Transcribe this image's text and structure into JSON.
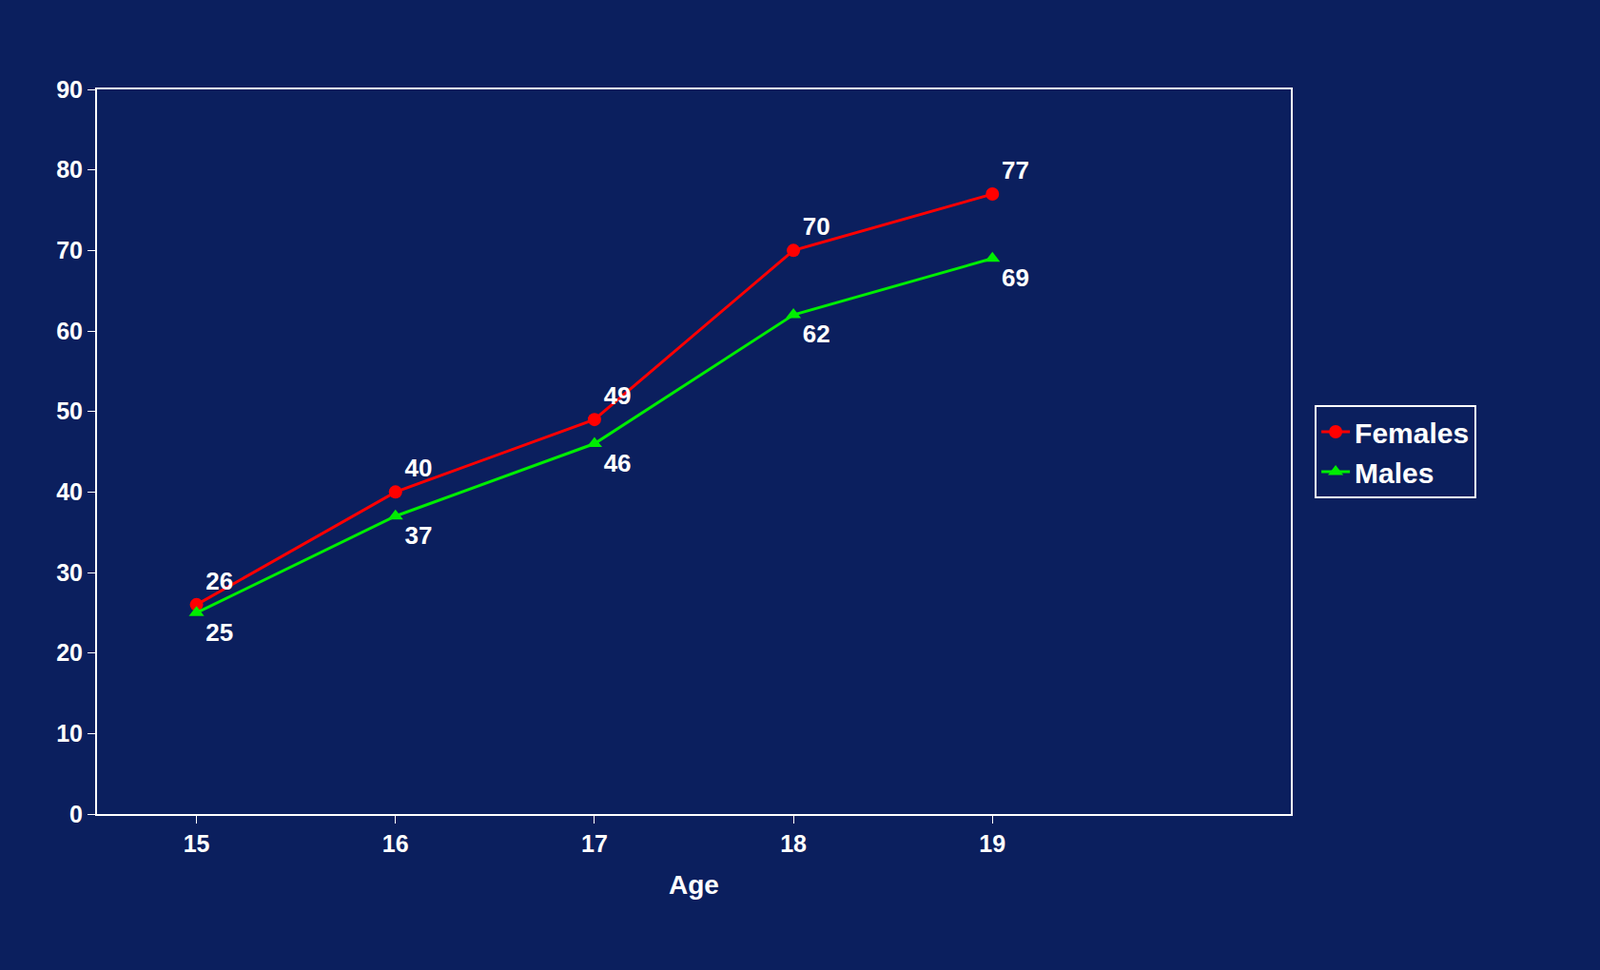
{
  "chart_data": {
    "type": "line",
    "x": [
      15,
      16,
      17,
      18,
      19
    ],
    "series": [
      {
        "name": "Females",
        "color": "#ff0000",
        "marker": "circle",
        "values": [
          26,
          40,
          49,
          70,
          77
        ]
      },
      {
        "name": "Males",
        "color": "#00ee00",
        "marker": "triangle-up",
        "values": [
          25,
          37,
          46,
          62,
          69
        ]
      }
    ],
    "x_label": "Age",
    "xlim": [
      14.5,
      20.5
    ],
    "xticks": [
      15,
      16,
      17,
      18,
      19
    ],
    "ylim": [
      0,
      90
    ],
    "yticks": [
      0,
      10,
      20,
      30,
      40,
      50,
      60,
      70,
      80,
      90
    ],
    "grid": false,
    "legend": "right",
    "data_labels": true
  }
}
